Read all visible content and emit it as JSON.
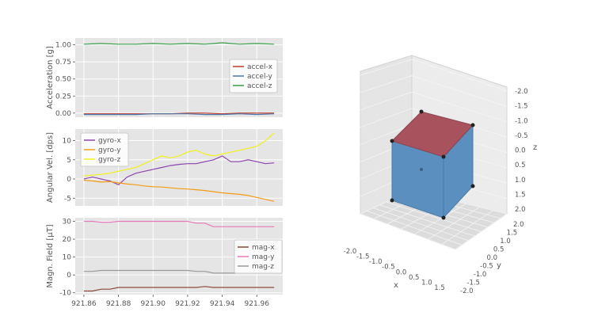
{
  "chart_data": [
    {
      "type": "line",
      "ylabel": "Acceleration [g]",
      "ylim": [
        -0.06,
        1.1
      ],
      "yticks": [
        "0.00",
        "0.25",
        "0.50",
        "0.75",
        "1.00"
      ],
      "ytick_values": [
        0,
        0.25,
        0.5,
        0.75,
        1.0
      ],
      "xlim": [
        921.855,
        921.975
      ],
      "legend_position": "right",
      "grid": true,
      "series": [
        {
          "name": "accel-x",
          "color": "#c0392b",
          "x": [
            921.86,
            921.87,
            921.88,
            921.89,
            921.9,
            921.91,
            921.92,
            921.93,
            921.94,
            921.95,
            921.96,
            921.97
          ],
          "values": [
            -0.01,
            -0.01,
            -0.01,
            -0.01,
            -0.01,
            -0.01,
            0.0,
            0.0,
            -0.01,
            0.0,
            0.0,
            0.0
          ]
        },
        {
          "name": "accel-y",
          "color": "#4a78a8",
          "x": [
            921.86,
            921.87,
            921.88,
            921.89,
            921.9,
            921.91,
            921.92,
            921.93,
            921.94,
            921.95,
            921.96,
            921.97
          ],
          "values": [
            -0.02,
            -0.02,
            -0.02,
            -0.02,
            -0.01,
            -0.01,
            -0.01,
            -0.02,
            -0.02,
            -0.01,
            -0.02,
            -0.01
          ]
        },
        {
          "name": "accel-z",
          "color": "#3a9e4a",
          "x": [
            921.86,
            921.87,
            921.88,
            921.89,
            921.9,
            921.91,
            921.92,
            921.93,
            921.94,
            921.95,
            921.96,
            921.97
          ],
          "values": [
            1.01,
            1.02,
            1.01,
            1.01,
            1.02,
            1.01,
            1.02,
            1.01,
            1.03,
            1.01,
            1.02,
            1.01
          ]
        }
      ]
    },
    {
      "type": "line",
      "ylabel": "Angular Vel. [dps]",
      "ylim": [
        -7,
        13
      ],
      "yticks": [
        "-5",
        "0",
        "5",
        "10"
      ],
      "ytick_values": [
        -5,
        0,
        5,
        10
      ],
      "xlim": [
        921.855,
        921.975
      ],
      "legend_position": "top-left",
      "grid": true,
      "series": [
        {
          "name": "gyro-x",
          "color": "#8e44ad",
          "x": [
            921.86,
            921.865,
            921.87,
            921.875,
            921.88,
            921.885,
            921.89,
            921.895,
            921.9,
            921.905,
            921.91,
            921.915,
            921.92,
            921.925,
            921.93,
            921.935,
            921.94,
            921.945,
            921.95,
            921.955,
            921.96,
            921.965,
            921.97
          ],
          "values": [
            0.0,
            0.5,
            0.0,
            -0.5,
            -1.5,
            0.5,
            1.5,
            2.0,
            2.5,
            3.0,
            3.5,
            3.8,
            4.0,
            4.0,
            4.5,
            5.0,
            6.0,
            4.5,
            4.5,
            5.0,
            4.5,
            4.0,
            4.2
          ]
        },
        {
          "name": "gyro-y",
          "color": "#f39c12",
          "x": [
            921.86,
            921.865,
            921.87,
            921.875,
            921.88,
            921.885,
            921.89,
            921.895,
            921.9,
            921.905,
            921.91,
            921.915,
            921.92,
            921.925,
            921.93,
            921.935,
            921.94,
            921.945,
            921.95,
            921.955,
            921.96,
            921.965,
            921.97
          ],
          "values": [
            -0.3,
            -0.5,
            -0.8,
            -0.7,
            -1.0,
            -1.3,
            -1.5,
            -1.8,
            -2.0,
            -2.1,
            -2.3,
            -2.5,
            -2.6,
            -2.8,
            -3.0,
            -3.3,
            -3.6,
            -3.8,
            -4.0,
            -4.3,
            -4.8,
            -5.3,
            -5.8
          ]
        },
        {
          "name": "gyro-z",
          "color": "#f2f21a",
          "x": [
            921.86,
            921.865,
            921.87,
            921.875,
            921.88,
            921.885,
            921.89,
            921.895,
            921.9,
            921.905,
            921.91,
            921.915,
            921.92,
            921.925,
            921.93,
            921.935,
            921.94,
            921.945,
            921.95,
            921.955,
            921.96,
            921.965,
            921.97
          ],
          "values": [
            0.8,
            1.0,
            1.2,
            1.5,
            2.0,
            2.5,
            3.0,
            4.0,
            5.0,
            6.0,
            5.5,
            6.0,
            7.0,
            7.5,
            6.5,
            6.0,
            6.5,
            7.0,
            7.5,
            8.0,
            8.5,
            10.0,
            12.0
          ]
        }
      ]
    },
    {
      "type": "line",
      "ylabel": "Magn. Field [µT]",
      "ylim": [
        -11,
        32
      ],
      "yticks": [
        "-10",
        "0",
        "10",
        "20",
        "30"
      ],
      "ytick_values": [
        -10,
        0,
        10,
        20,
        30
      ],
      "xlim": [
        921.855,
        921.975
      ],
      "xticks": [
        "921.86",
        "921.88",
        "921.90",
        "921.92",
        "921.94",
        "921.96"
      ],
      "xtick_values": [
        921.86,
        921.88,
        921.9,
        921.92,
        921.94,
        921.96
      ],
      "legend_position": "bottom-right",
      "grid": true,
      "series": [
        {
          "name": "mag-x",
          "color": "#8b4a3a",
          "x": [
            921.86,
            921.865,
            921.87,
            921.875,
            921.88,
            921.89,
            921.9,
            921.91,
            921.92,
            921.925,
            921.93,
            921.935,
            921.94,
            921.95,
            921.96,
            921.97
          ],
          "values": [
            -9,
            -9,
            -8,
            -8,
            -7,
            -7,
            -7,
            -7,
            -7,
            -7,
            -6.5,
            -7,
            -7,
            -7,
            -7,
            -7
          ]
        },
        {
          "name": "mag-y",
          "color": "#e67ab8",
          "x": [
            921.86,
            921.865,
            921.87,
            921.875,
            921.88,
            921.89,
            921.9,
            921.91,
            921.92,
            921.925,
            921.93,
            921.935,
            921.94,
            921.95,
            921.96,
            921.97
          ],
          "values": [
            30,
            30,
            29.5,
            29.5,
            30,
            30,
            30,
            30,
            30,
            29,
            29,
            27,
            27,
            27,
            27,
            27
          ]
        },
        {
          "name": "mag-z",
          "color": "#9a9a9a",
          "x": [
            921.86,
            921.865,
            921.87,
            921.875,
            921.88,
            921.89,
            921.9,
            921.91,
            921.92,
            921.925,
            921.93,
            921.935,
            921.94,
            921.95,
            921.96,
            921.97
          ],
          "values": [
            2,
            2,
            2.5,
            2.5,
            2.5,
            2.5,
            2.5,
            2.5,
            2.5,
            2,
            2,
            1,
            1,
            1,
            1,
            1
          ]
        }
      ]
    },
    {
      "type": "3d-cube",
      "xlabel": "x",
      "ylabel": "y",
      "zlabel": "z",
      "xticks": [
        "-2.0",
        "-1.5",
        "-1.0",
        "-0.5",
        "0.0",
        "0.5",
        "1.0",
        "1.5"
      ],
      "yticks": [
        "-2.0",
        "-1.5",
        "-1.0",
        "-0.5",
        "0.0",
        "0.5",
        "1.0",
        "1.5",
        "2.0"
      ],
      "zticks": [
        "-2.0",
        "-1.5",
        "-1.0",
        "-0.5",
        "0.0",
        "0.5",
        "1.0",
        "1.5",
        "2.0"
      ],
      "top_face_color": "#a8525e",
      "side_face_color": "#5a8fc0"
    }
  ]
}
